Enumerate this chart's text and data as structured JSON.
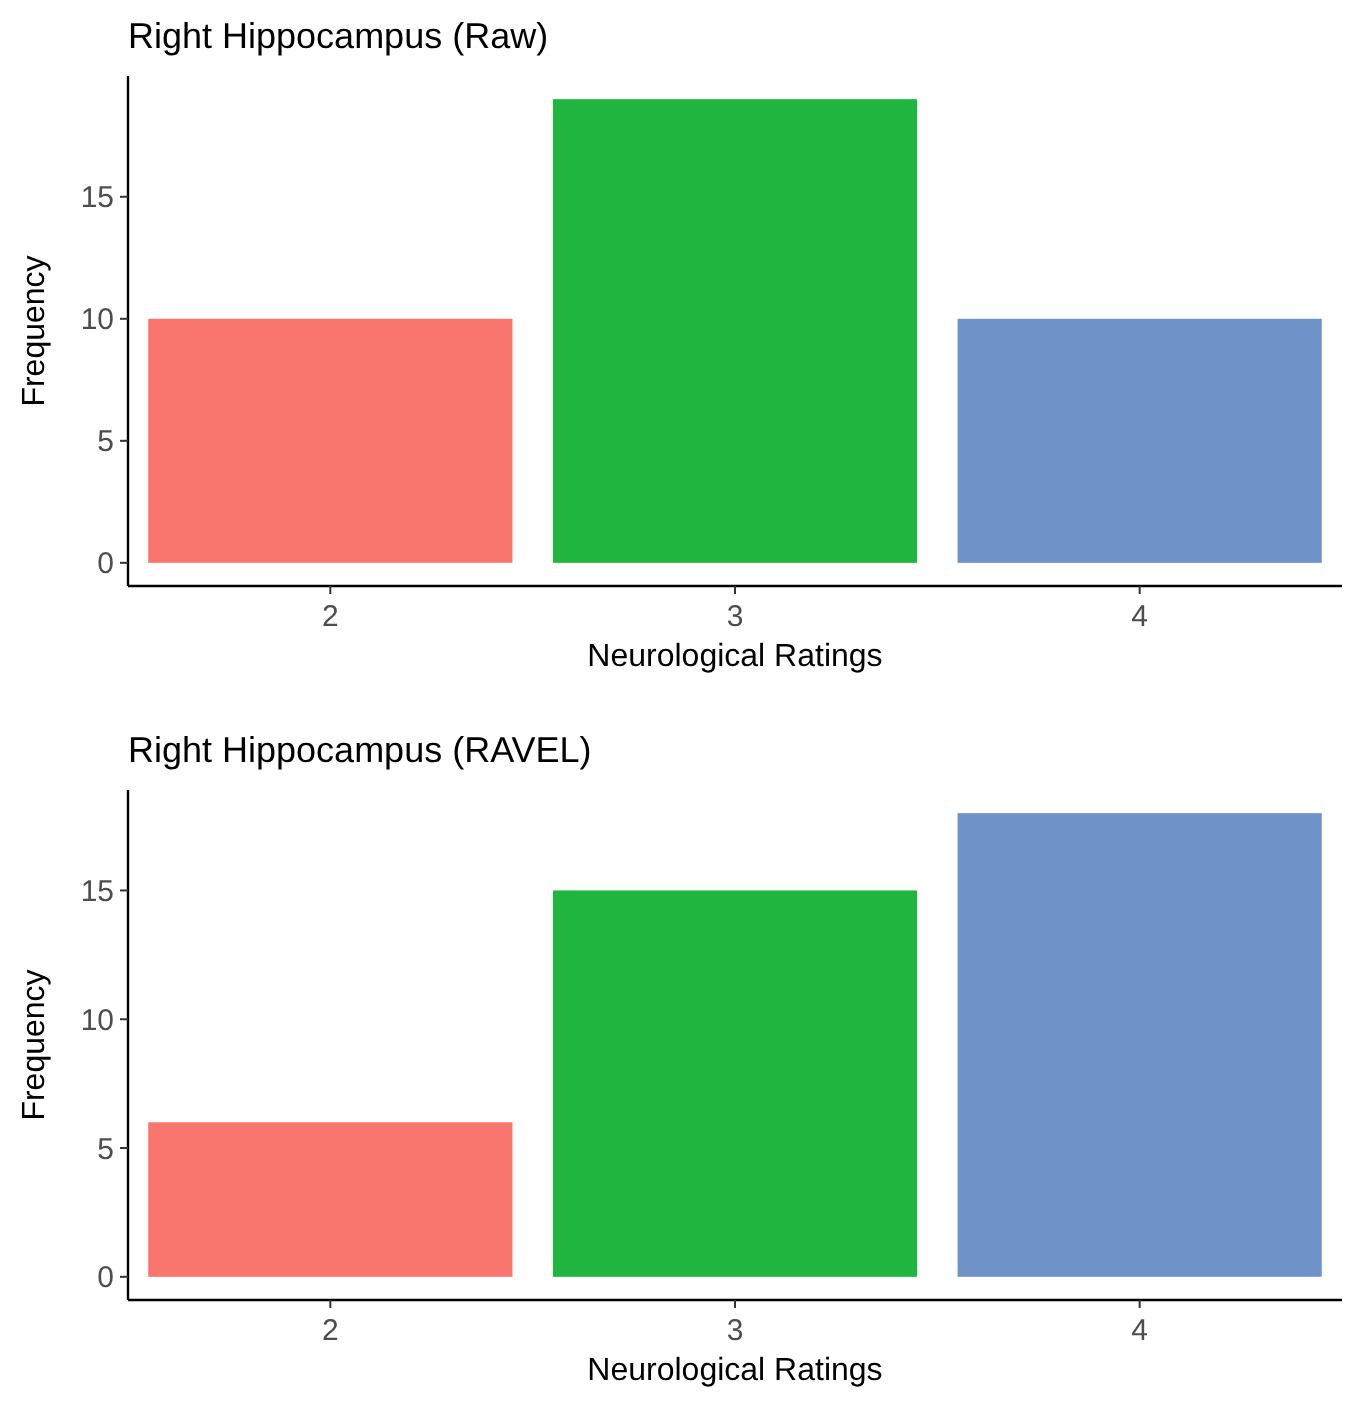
{
  "chart_data": [
    {
      "type": "bar",
      "title": "Right Hippocampus (Raw)",
      "xlabel": "Neurological Ratings",
      "ylabel": "Frequency",
      "categories": [
        "2",
        "3",
        "4"
      ],
      "values": [
        10,
        19,
        10
      ],
      "colors": [
        "#f8766d",
        "#1fb53f",
        "#6f93c9"
      ],
      "ylim": [
        -0.95,
        19.95
      ],
      "yticks": [
        0,
        5,
        10,
        15
      ],
      "grid": false
    },
    {
      "type": "bar",
      "title": "Right Hippocampus (RAVEL)",
      "xlabel": "Neurological Ratings",
      "ylabel": "Frequency",
      "categories": [
        "2",
        "3",
        "4"
      ],
      "values": [
        6,
        15,
        18
      ],
      "colors": [
        "#f8766d",
        "#1fb53f",
        "#6f93c9"
      ],
      "ylim": [
        -0.9,
        18.9
      ],
      "yticks": [
        0,
        5,
        10,
        15
      ],
      "grid": false
    }
  ]
}
